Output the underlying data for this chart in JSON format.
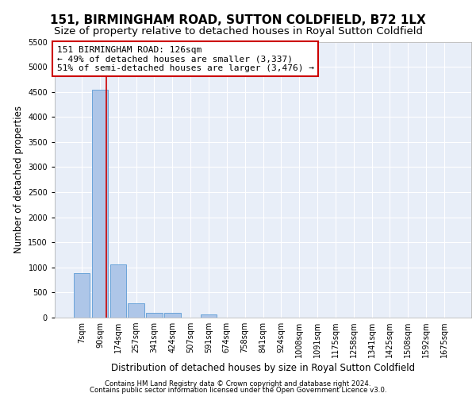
{
  "title": "151, BIRMINGHAM ROAD, SUTTON COLDFIELD, B72 1LX",
  "subtitle": "Size of property relative to detached houses in Royal Sutton Coldfield",
  "xlabel": "Distribution of detached houses by size in Royal Sutton Coldfield",
  "ylabel": "Number of detached properties",
  "categories": [
    "7sqm",
    "90sqm",
    "174sqm",
    "257sqm",
    "341sqm",
    "424sqm",
    "507sqm",
    "591sqm",
    "674sqm",
    "758sqm",
    "841sqm",
    "924sqm",
    "1008sqm",
    "1091sqm",
    "1175sqm",
    "1258sqm",
    "1341sqm",
    "1425sqm",
    "1508sqm",
    "1592sqm",
    "1675sqm"
  ],
  "values": [
    890,
    4550,
    1060,
    290,
    90,
    90,
    0,
    60,
    0,
    0,
    0,
    0,
    0,
    0,
    0,
    0,
    0,
    0,
    0,
    0,
    0
  ],
  "bar_color": "#aec6e8",
  "bar_edgecolor": "#5b9bd5",
  "vline_x": 1.35,
  "vline_color": "#cc0000",
  "annotation_text": "151 BIRMINGHAM ROAD: 126sqm\n← 49% of detached houses are smaller (3,337)\n51% of semi-detached houses are larger (3,476) →",
  "annotation_box_color": "#ffffff",
  "annotation_box_edgecolor": "#cc0000",
  "ylim": [
    0,
    5500
  ],
  "yticks": [
    0,
    500,
    1000,
    1500,
    2000,
    2500,
    3000,
    3500,
    4000,
    4500,
    5000,
    5500
  ],
  "background_color": "#e8eef8",
  "grid_color": "#ffffff",
  "footer1": "Contains HM Land Registry data © Crown copyright and database right 2024.",
  "footer2": "Contains public sector information licensed under the Open Government Licence v3.0.",
  "title_fontsize": 11,
  "subtitle_fontsize": 9.5,
  "axis_label_fontsize": 8.5,
  "tick_fontsize": 7,
  "annotation_fontsize": 8
}
